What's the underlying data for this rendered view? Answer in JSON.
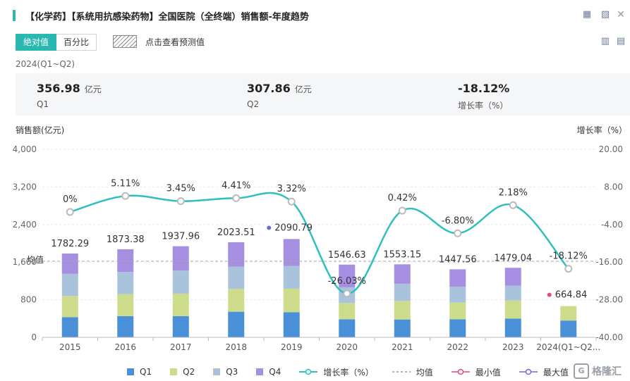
{
  "title": "【化学药】【系统用抗感染药物】全国医院（全终端）销售额-年度趋势",
  "toolbar": {
    "tabs": [
      {
        "label": "绝对值",
        "active": true
      },
      {
        "label": "百分比",
        "active": false
      }
    ],
    "forecast_label": "点击查看预测值"
  },
  "icons": {
    "top": [
      "excel-export-icon",
      "image-export-icon",
      "close-icon"
    ],
    "view": [
      "bar-chart-icon",
      "document-icon"
    ]
  },
  "period": "2024(Q1~Q2)",
  "summary": [
    {
      "value": "356.98",
      "unit": "亿元",
      "label": "Q1"
    },
    {
      "value": "307.86",
      "unit": "亿元",
      "label": "Q2"
    },
    {
      "value": "-18.12%",
      "unit": "",
      "label": "增长率（%）"
    }
  ],
  "colors": {
    "Q1": "#4a90d9",
    "Q2": "#cddc8b",
    "Q3": "#a9c3dd",
    "Q4": "#a68ee0",
    "growth": "#2fbfbf",
    "min": "#e8467c",
    "max": "#6b6bd6"
  },
  "chart_data": {
    "type": "bar",
    "stacked": true,
    "categories": [
      "2015",
      "2016",
      "2017",
      "2018",
      "2019",
      "2020",
      "2021",
      "2022",
      "2023",
      "2024(Q1~Q2..."
    ],
    "totals": [
      "1782.29",
      "1873.38",
      "1937.96",
      "2023.51",
      "2090.79",
      "1546.63",
      "1553.15",
      "1447.56",
      "1479.04",
      "664.84"
    ],
    "series": [
      {
        "name": "Q1",
        "values": [
          430,
          450,
          450,
          545,
          535,
          385,
          380,
          385,
          400,
          356.98
        ]
      },
      {
        "name": "Q2",
        "values": [
          450,
          470,
          480,
          485,
          500,
          345,
          395,
          355,
          385,
          307.86
        ]
      },
      {
        "name": "Q3",
        "values": [
          470,
          470,
          490,
          475,
          485,
          335,
          365,
          335,
          315,
          0
        ]
      },
      {
        "name": "Q4",
        "values": [
          432.29,
          483.38,
          517.96,
          518.51,
          570.79,
          481.63,
          413.15,
          372.56,
          379.04,
          0
        ]
      }
    ],
    "growth": {
      "name": "增长率（%）",
      "values": [
        0,
        5.11,
        3.45,
        4.41,
        3.32,
        -26.03,
        0.42,
        -6.8,
        2.18,
        -18.12
      ],
      "labels": [
        "0%",
        "5.11%",
        "3.45%",
        "4.41%",
        "3.32%",
        "-26.03%",
        "0.42%",
        "-6.80%",
        "2.18%",
        "-18.12%"
      ]
    },
    "average": {
      "label": "均值",
      "value": 1620
    },
    "max_point": {
      "index": 4,
      "label": "2090.79"
    },
    "min_point": {
      "index": 9,
      "label": "664.84"
    },
    "ylabel_left": "销售额(亿元)",
    "ylabel_right": "增长率（%）",
    "ylim_left": [
      0,
      4000
    ],
    "ylim_right": [
      -40,
      20
    ],
    "yticks_left": [
      "0",
      "800",
      "1,600",
      "2,400",
      "3,200",
      "4,000"
    ],
    "yticks_right": [
      "-40.00",
      "-28.00",
      "-16.00",
      "-4.00",
      "8.00",
      "20.00"
    ],
    "grid": true,
    "legend": [
      "Q1",
      "Q2",
      "Q3",
      "Q4",
      "增长率（%）",
      "均值",
      "最小值",
      "最大值"
    ],
    "legend_position": "bottom"
  },
  "watermark": "格隆汇"
}
